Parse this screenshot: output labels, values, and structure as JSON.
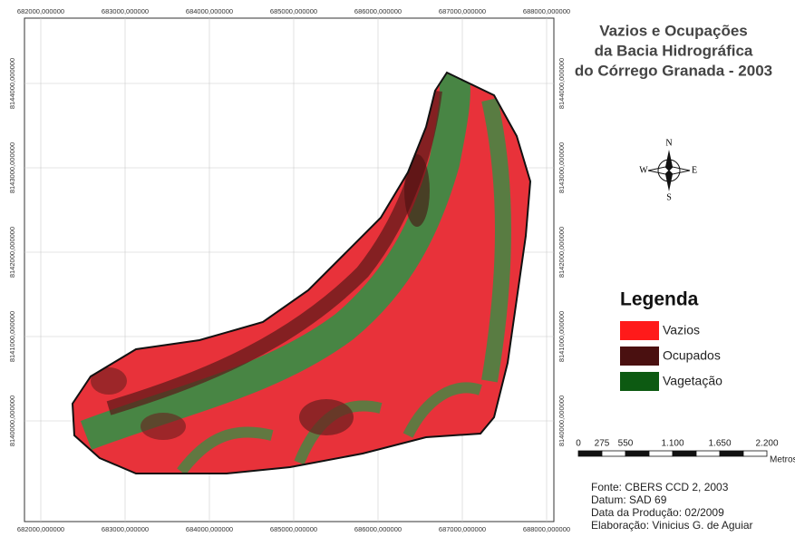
{
  "title": [
    "Vazios e Ocupações",
    "da Bacia Hidrográfica",
    "do Córrego Granada - 2003"
  ],
  "x_coordinates": [
    "682000,000000",
    "683000,000000",
    "684000,000000",
    "685000,000000",
    "686000,000000",
    "687000,000000",
    "688000,000000"
  ],
  "y_coordinates": [
    "8144000,000000",
    "8143000,000000",
    "8142000,000000",
    "8141000,000000",
    "8140000,000000"
  ],
  "compass": {
    "north": "N",
    "south": "S",
    "east": "E",
    "west": "W"
  },
  "legend": {
    "title": "Legenda",
    "items": [
      {
        "label": "Vazios",
        "color": "#ff1a1a"
      },
      {
        "label": "Ocupados",
        "color": "#4a1010"
      },
      {
        "label": "Vagetação",
        "color": "#0d5a12"
      }
    ]
  },
  "scale_bar": {
    "labels": [
      "0",
      "275",
      "550",
      "1.100",
      "1.650",
      "2.200"
    ],
    "unit": "Metros"
  },
  "credits": [
    "Fonte: CBERS CCD 2, 2003",
    "Datum: SAD 69",
    "Data da Produção: 02/2009",
    "Elaboração: Vinicius G. de Aguiar"
  ]
}
